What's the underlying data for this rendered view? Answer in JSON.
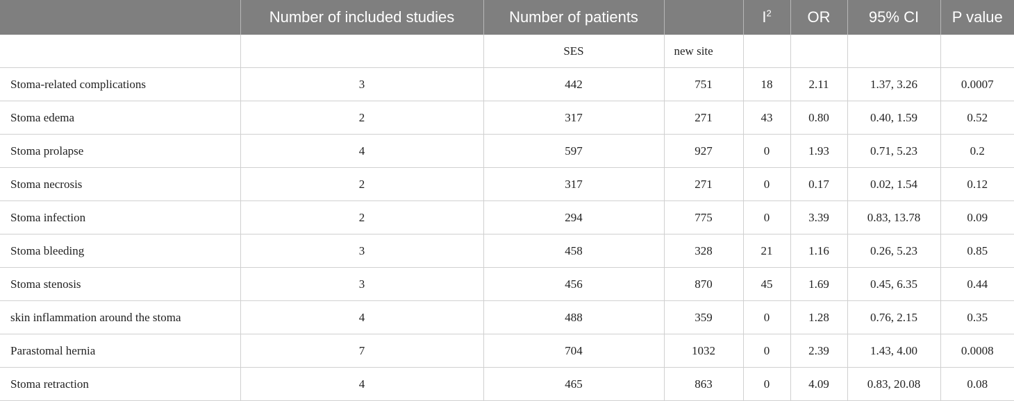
{
  "table": {
    "headers": {
      "label": "",
      "studies": "Number of included studies",
      "patients": "Number of patients",
      "patients_blank": "",
      "i2_base": "I",
      "i2_sup": "2",
      "or": "OR",
      "ci": "95% CI",
      "p": "P value"
    },
    "subheaders": {
      "ses": "SES",
      "new_site": "new site"
    },
    "rows": [
      {
        "name": "Stoma-related complications",
        "studies": "3",
        "ses": "442",
        "new_site": "751",
        "i2": "18",
        "or": "2.11",
        "ci": "1.37, 3.26",
        "p": "0.0007"
      },
      {
        "name": "Stoma edema",
        "studies": "2",
        "ses": "317",
        "new_site": "271",
        "i2": "43",
        "or": "0.80",
        "ci": "0.40, 1.59",
        "p": "0.52"
      },
      {
        "name": "Stoma prolapse",
        "studies": "4",
        "ses": "597",
        "new_site": "927",
        "i2": "0",
        "or": "1.93",
        "ci": "0.71, 5.23",
        "p": "0.2"
      },
      {
        "name": "Stoma necrosis",
        "studies": "2",
        "ses": "317",
        "new_site": "271",
        "i2": "0",
        "or": "0.17",
        "ci": "0.02, 1.54",
        "p": "0.12"
      },
      {
        "name": "Stoma infection",
        "studies": "2",
        "ses": "294",
        "new_site": "775",
        "i2": "0",
        "or": "3.39",
        "ci": "0.83, 13.78",
        "p": "0.09"
      },
      {
        "name": "Stoma bleeding",
        "studies": "3",
        "ses": "458",
        "new_site": "328",
        "i2": "21",
        "or": "1.16",
        "ci": "0.26, 5.23",
        "p": "0.85"
      },
      {
        "name": "Stoma stenosis",
        "studies": "3",
        "ses": "456",
        "new_site": "870",
        "i2": "45",
        "or": "1.69",
        "ci": "0.45, 6.35",
        "p": "0.44"
      },
      {
        "name": "skin inflammation around the stoma",
        "studies": "4",
        "ses": "488",
        "new_site": "359",
        "i2": "0",
        "or": "1.28",
        "ci": "0.76, 2.15",
        "p": "0.35"
      },
      {
        "name": "Parastomal hernia",
        "studies": "7",
        "ses": "704",
        "new_site": "1032",
        "i2": "0",
        "or": "2.39",
        "ci": "1.43, 4.00",
        "p": "0.0008"
      },
      {
        "name": "Stoma retraction",
        "studies": "4",
        "ses": "465",
        "new_site": "863",
        "i2": "0",
        "or": "4.09",
        "ci": "0.83, 20.08",
        "p": "0.08"
      }
    ]
  }
}
